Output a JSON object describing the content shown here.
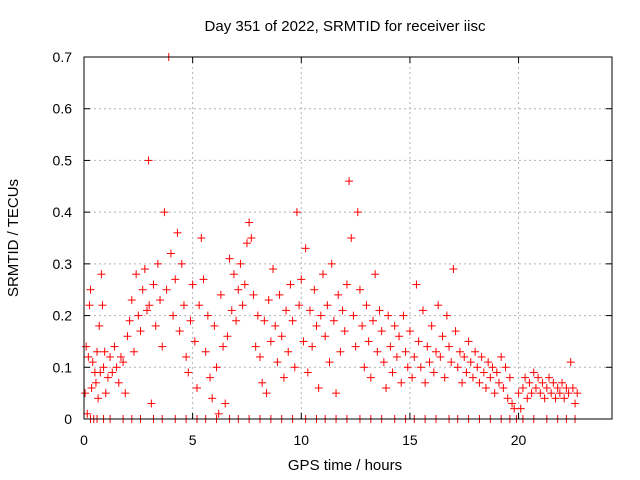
{
  "chart_data": {
    "type": "scatter",
    "title": "Day 351 of 2022, SRMTID for receiver iisc",
    "xlabel": "GPS time / hours",
    "ylabel": "SRMTID / TECUs",
    "xlim": [
      0,
      24.3
    ],
    "ylim": [
      0,
      0.7
    ],
    "x_ticks": [
      "0",
      "5",
      "10",
      "15",
      "20"
    ],
    "y_ticks": [
      "0",
      "0.1",
      "0.2",
      "0.3",
      "0.4",
      "0.5",
      "0.6",
      "0.7"
    ],
    "grid": true,
    "marker": "+",
    "series": [
      {
        "name": "SRMTID",
        "color": "#ff0000",
        "points": [
          [
            0.05,
            0.05
          ],
          [
            0.1,
            0.14
          ],
          [
            0.15,
            0.01
          ],
          [
            0.2,
            0.12
          ],
          [
            0.25,
            0.22
          ],
          [
            0.3,
            0.25
          ],
          [
            0.35,
            0.06
          ],
          [
            0.4,
            0.11
          ],
          [
            0.45,
            0.0
          ],
          [
            0.5,
            0.09
          ],
          [
            0.55,
            0.07
          ],
          [
            0.6,
            0.13
          ],
          [
            0.65,
            0.04
          ],
          [
            0.7,
            0.18
          ],
          [
            0.75,
            0.09
          ],
          [
            0.8,
            0.28
          ],
          [
            0.85,
            0.22
          ],
          [
            0.9,
            0.1
          ],
          [
            0.95,
            0.13
          ],
          [
            1.0,
            0.05
          ],
          [
            1.1,
            0.08
          ],
          [
            1.2,
            0.12
          ],
          [
            1.3,
            0.09
          ],
          [
            1.4,
            0.14
          ],
          [
            1.5,
            0.1
          ],
          [
            1.6,
            0.07
          ],
          [
            1.7,
            0.12
          ],
          [
            1.8,
            0.11
          ],
          [
            1.9,
            0.05
          ],
          [
            2.0,
            0.16
          ],
          [
            2.1,
            0.19
          ],
          [
            2.2,
            0.23
          ],
          [
            2.3,
            0.13
          ],
          [
            2.4,
            0.28
          ],
          [
            2.5,
            0.2
          ],
          [
            2.6,
            0.17
          ],
          [
            2.7,
            0.25
          ],
          [
            2.8,
            0.29
          ],
          [
            2.9,
            0.21
          ],
          [
            2.97,
            0.5
          ],
          [
            3.0,
            0.22
          ],
          [
            3.1,
            0.03
          ],
          [
            3.2,
            0.26
          ],
          [
            3.3,
            0.18
          ],
          [
            3.4,
            0.3
          ],
          [
            3.5,
            0.23
          ],
          [
            3.6,
            0.14
          ],
          [
            3.7,
            0.4
          ],
          [
            3.8,
            0.25
          ],
          [
            3.9,
            0.7
          ],
          [
            4.0,
            0.32
          ],
          [
            4.1,
            0.2
          ],
          [
            4.2,
            0.27
          ],
          [
            4.3,
            0.36
          ],
          [
            4.4,
            0.17
          ],
          [
            4.5,
            0.3
          ],
          [
            4.6,
            0.22
          ],
          [
            4.7,
            0.12
          ],
          [
            4.8,
            0.09
          ],
          [
            4.9,
            0.19
          ],
          [
            5.0,
            0.26
          ],
          [
            5.1,
            0.15
          ],
          [
            5.2,
            0.06
          ],
          [
            5.3,
            0.22
          ],
          [
            5.4,
            0.35
          ],
          [
            5.5,
            0.27
          ],
          [
            5.6,
            0.13
          ],
          [
            5.7,
            0.2
          ],
          [
            5.8,
            0.08
          ],
          [
            5.9,
            0.04
          ],
          [
            6.0,
            0.18
          ],
          [
            6.1,
            0.1
          ],
          [
            6.2,
            0.01
          ],
          [
            6.3,
            0.24
          ],
          [
            6.4,
            0.14
          ],
          [
            6.5,
            0.03
          ],
          [
            6.6,
            0.16
          ],
          [
            6.7,
            0.31
          ],
          [
            6.8,
            0.21
          ],
          [
            6.9,
            0.28
          ],
          [
            7.0,
            0.19
          ],
          [
            7.1,
            0.25
          ],
          [
            7.2,
            0.3
          ],
          [
            7.3,
            0.22
          ],
          [
            7.4,
            0.26
          ],
          [
            7.5,
            0.34
          ],
          [
            7.6,
            0.38
          ],
          [
            7.7,
            0.35
          ],
          [
            7.8,
            0.24
          ],
          [
            7.9,
            0.14
          ],
          [
            8.0,
            0.2
          ],
          [
            8.1,
            0.12
          ],
          [
            8.2,
            0.07
          ],
          [
            8.3,
            0.19
          ],
          [
            8.4,
            0.05
          ],
          [
            8.5,
            0.23
          ],
          [
            8.6,
            0.15
          ],
          [
            8.7,
            0.29
          ],
          [
            8.8,
            0.18
          ],
          [
            8.9,
            0.11
          ],
          [
            9.0,
            0.24
          ],
          [
            9.1,
            0.16
          ],
          [
            9.2,
            0.08
          ],
          [
            9.3,
            0.21
          ],
          [
            9.4,
            0.13
          ],
          [
            9.5,
            0.26
          ],
          [
            9.6,
            0.19
          ],
          [
            9.7,
            0.1
          ],
          [
            9.8,
            0.4
          ],
          [
            9.9,
            0.22
          ],
          [
            10.0,
            0.27
          ],
          [
            10.1,
            0.15
          ],
          [
            10.2,
            0.33
          ],
          [
            10.3,
            0.09
          ],
          [
            10.4,
            0.21
          ],
          [
            10.5,
            0.14
          ],
          [
            10.6,
            0.25
          ],
          [
            10.7,
            0.18
          ],
          [
            10.8,
            0.06
          ],
          [
            10.9,
            0.2
          ],
          [
            11.0,
            0.28
          ],
          [
            11.1,
            0.16
          ],
          [
            11.2,
            0.22
          ],
          [
            11.3,
            0.11
          ],
          [
            11.4,
            0.3
          ],
          [
            11.5,
            0.19
          ],
          [
            11.6,
            0.05
          ],
          [
            11.7,
            0.24
          ],
          [
            11.8,
            0.13
          ],
          [
            11.9,
            0.21
          ],
          [
            12.0,
            0.17
          ],
          [
            12.1,
            0.26
          ],
          [
            12.2,
            0.46
          ],
          [
            12.3,
            0.35
          ],
          [
            12.4,
            0.2
          ],
          [
            12.5,
            0.14
          ],
          [
            12.6,
            0.4
          ],
          [
            12.7,
            0.25
          ],
          [
            12.8,
            0.18
          ],
          [
            12.9,
            0.1
          ],
          [
            13.0,
            0.22
          ],
          [
            13.1,
            0.15
          ],
          [
            13.2,
            0.08
          ],
          [
            13.3,
            0.19
          ],
          [
            13.4,
            0.28
          ],
          [
            13.5,
            0.13
          ],
          [
            13.6,
            0.21
          ],
          [
            13.7,
            0.17
          ],
          [
            13.8,
            0.11
          ],
          [
            13.9,
            0.06
          ],
          [
            14.0,
            0.2
          ],
          [
            14.1,
            0.14
          ],
          [
            14.2,
            0.09
          ],
          [
            14.3,
            0.18
          ],
          [
            14.4,
            0.12
          ],
          [
            14.5,
            0.16
          ],
          [
            14.6,
            0.07
          ],
          [
            14.7,
            0.2
          ],
          [
            14.8,
            0.13
          ],
          [
            14.9,
            0.1
          ],
          [
            15.0,
            0.17
          ],
          [
            15.1,
            0.08
          ],
          [
            15.2,
            0.12
          ],
          [
            15.3,
            0.26
          ],
          [
            15.4,
            0.15
          ],
          [
            15.5,
            0.1
          ],
          [
            15.6,
            0.21
          ],
          [
            15.7,
            0.07
          ],
          [
            15.8,
            0.14
          ],
          [
            15.9,
            0.11
          ],
          [
            16.0,
            0.18
          ],
          [
            16.1,
            0.09
          ],
          [
            16.2,
            0.13
          ],
          [
            16.3,
            0.22
          ],
          [
            16.4,
            0.12
          ],
          [
            16.5,
            0.16
          ],
          [
            16.6,
            0.08
          ],
          [
            16.7,
            0.2
          ],
          [
            16.8,
            0.14
          ],
          [
            16.9,
            0.11
          ],
          [
            17.0,
            0.29
          ],
          [
            17.1,
            0.17
          ],
          [
            17.2,
            0.1
          ],
          [
            17.3,
            0.13
          ],
          [
            17.4,
            0.07
          ],
          [
            17.5,
            0.12
          ],
          [
            17.6,
            0.09
          ],
          [
            17.7,
            0.15
          ],
          [
            17.8,
            0.11
          ],
          [
            17.9,
            0.08
          ],
          [
            18.0,
            0.13
          ],
          [
            18.1,
            0.1
          ],
          [
            18.2,
            0.07
          ],
          [
            18.3,
            0.12
          ],
          [
            18.4,
            0.09
          ],
          [
            18.5,
            0.06
          ],
          [
            18.6,
            0.11
          ],
          [
            18.7,
            0.08
          ],
          [
            18.8,
            0.1
          ],
          [
            18.9,
            0.05
          ],
          [
            19.0,
            0.09
          ],
          [
            19.1,
            0.07
          ],
          [
            19.2,
            0.12
          ],
          [
            19.3,
            0.06
          ],
          [
            19.4,
            0.1
          ],
          [
            19.5,
            0.04
          ],
          [
            19.6,
            0.08
          ],
          [
            19.7,
            0.03
          ],
          [
            19.8,
            0.02
          ],
          [
            19.9,
            0.0
          ],
          [
            20.0,
            0.05
          ],
          [
            20.1,
            0.02
          ],
          [
            20.2,
            0.06
          ],
          [
            20.3,
            0.08
          ],
          [
            20.4,
            0.04
          ],
          [
            20.5,
            0.07
          ],
          [
            20.6,
            0.05
          ],
          [
            20.7,
            0.09
          ],
          [
            20.8,
            0.06
          ],
          [
            20.9,
            0.08
          ],
          [
            21.0,
            0.05
          ],
          [
            21.1,
            0.07
          ],
          [
            21.2,
            0.04
          ],
          [
            21.3,
            0.06
          ],
          [
            21.4,
            0.08
          ],
          [
            21.5,
            0.05
          ],
          [
            21.6,
            0.07
          ],
          [
            21.7,
            0.04
          ],
          [
            21.8,
            0.06
          ],
          [
            21.9,
            0.05
          ],
          [
            22.0,
            0.07
          ],
          [
            22.1,
            0.04
          ],
          [
            22.2,
            0.06
          ],
          [
            22.3,
            0.05
          ],
          [
            22.4,
            0.11
          ],
          [
            22.5,
            0.06
          ],
          [
            22.6,
            0.03
          ],
          [
            22.7,
            0.05
          ],
          [
            0.3,
            0.0
          ],
          [
            0.6,
            0.0
          ],
          [
            0.9,
            0.0
          ],
          [
            1.2,
            0.0
          ],
          [
            1.8,
            0.0
          ],
          [
            2.2,
            0.0
          ],
          [
            2.6,
            0.0
          ],
          [
            3.2,
            0.0
          ],
          [
            3.6,
            0.0
          ],
          [
            4.2,
            0.0
          ],
          [
            4.7,
            0.0
          ],
          [
            5.2,
            0.0
          ],
          [
            5.6,
            0.0
          ],
          [
            6.1,
            0.0
          ],
          [
            6.7,
            0.0
          ],
          [
            7.1,
            0.0
          ],
          [
            7.6,
            0.0
          ],
          [
            8.1,
            0.0
          ],
          [
            8.6,
            0.0
          ],
          [
            9.1,
            0.0
          ],
          [
            9.6,
            0.0
          ],
          [
            10.2,
            0.0
          ],
          [
            10.7,
            0.0
          ],
          [
            11.1,
            0.0
          ],
          [
            11.6,
            0.0
          ],
          [
            12.1,
            0.0
          ],
          [
            12.7,
            0.0
          ],
          [
            13.2,
            0.0
          ],
          [
            13.7,
            0.0
          ],
          [
            14.3,
            0.0
          ],
          [
            14.8,
            0.0
          ],
          [
            15.2,
            0.0
          ],
          [
            15.7,
            0.0
          ],
          [
            16.2,
            0.0
          ],
          [
            16.8,
            0.0
          ],
          [
            17.2,
            0.0
          ],
          [
            17.7,
            0.0
          ],
          [
            18.2,
            0.0
          ],
          [
            18.7,
            0.0
          ],
          [
            19.2,
            0.0
          ],
          [
            19.6,
            0.0
          ],
          [
            20.2,
            0.0
          ],
          [
            20.7,
            0.0
          ],
          [
            21.3,
            0.0
          ],
          [
            21.8,
            0.0
          ],
          [
            22.2,
            0.0
          ],
          [
            22.6,
            0.0
          ]
        ]
      }
    ]
  }
}
